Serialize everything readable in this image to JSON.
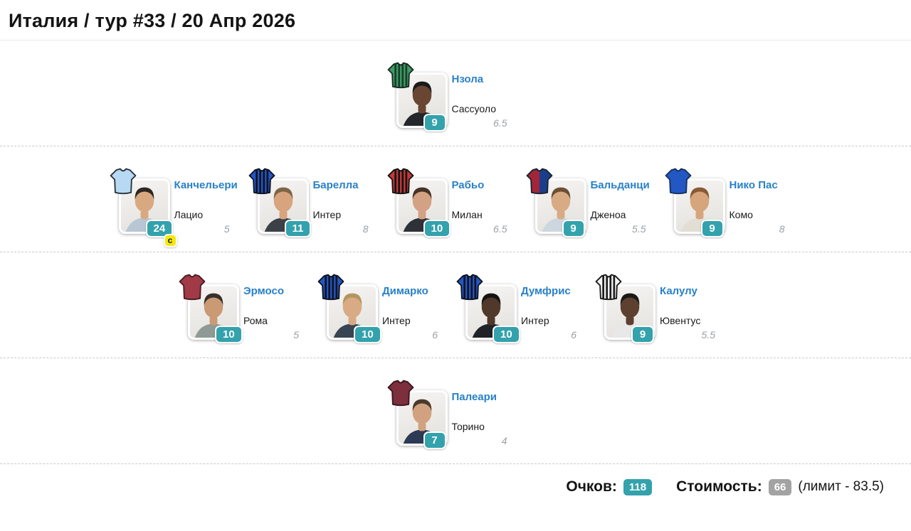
{
  "header": {
    "title": "Италия / тур #33 / 20 Апр 2026"
  },
  "colors": {
    "link_blue": "#2980c9",
    "points_teal": "#33a2ad",
    "captain_yellow": "#f4e80f",
    "cost_gray": "#a3a3a3"
  },
  "rows": [
    {
      "line": "forward-line",
      "players": [
        {
          "name": "Нзола",
          "team": "Сассуоло",
          "points": "9",
          "price": "6.5",
          "captain": false,
          "jersey": {
            "icon": "tshirt-icon",
            "pattern": "stripes",
            "primary": "#3f9b63",
            "secondary": "#173f2c",
            "outline": "#1d2b24"
          },
          "photo": {
            "skin": "#6a4632",
            "hair": "#1b1b1b",
            "shirt": "#23262b"
          }
        }
      ]
    },
    {
      "line": "midfield-line",
      "players": [
        {
          "name": "Канчельери",
          "team": "Лацио",
          "points": "24",
          "price": "5",
          "captain": true,
          "captain_badge": "c",
          "jersey": {
            "icon": "tshirt-icon",
            "pattern": "solid",
            "primary": "#b7d9f4",
            "secondary": "#b7d9f4",
            "outline": "#2c3640"
          },
          "photo": {
            "skin": "#d8a981",
            "hair": "#2e2723",
            "shirt": "#b9c6d4"
          }
        },
        {
          "name": "Барелла",
          "team": "Интер",
          "points": "11",
          "price": "8",
          "captain": false,
          "jersey": {
            "icon": "tshirt-icon",
            "pattern": "stripes",
            "primary": "#2356c5",
            "secondary": "#10131f",
            "outline": "#10131f"
          },
          "photo": {
            "skin": "#d8a47d",
            "hair": "#7d6547",
            "shirt": "#3c4148"
          }
        },
        {
          "name": "Рабьо",
          "team": "Милан",
          "points": "10",
          "price": "6.5",
          "captain": false,
          "jersey": {
            "icon": "tshirt-icon",
            "pattern": "stripes",
            "primary": "#c63838",
            "secondary": "#141414",
            "outline": "#141414"
          },
          "photo": {
            "skin": "#d3a183",
            "hair": "#463226",
            "shirt": "#2e3238"
          }
        },
        {
          "name": "Бальданци",
          "team": "Дженоа",
          "points": "9",
          "price": "5.5",
          "captain": false,
          "jersey": {
            "icon": "tshirt-icon",
            "pattern": "halves",
            "primary": "#a32638",
            "secondary": "#1a3e8c",
            "outline": "#1b2430"
          },
          "photo": {
            "skin": "#d9ab85",
            "hair": "#6d4e33",
            "shirt": "#cdd6df"
          }
        },
        {
          "name": "Нико Пас",
          "team": "Комо",
          "points": "9",
          "price": "8",
          "captain": false,
          "jersey": {
            "icon": "tshirt-icon",
            "pattern": "solid",
            "primary": "#2257c4",
            "secondary": "#2257c4",
            "outline": "#16325e"
          },
          "photo": {
            "skin": "#d7a57c",
            "hair": "#8a5a36",
            "shirt": "#e3ded4"
          }
        }
      ]
    },
    {
      "line": "defense-line",
      "players": [
        {
          "name": "Эрмосо",
          "team": "Рома",
          "points": "10",
          "price": "5",
          "captain": false,
          "jersey": {
            "icon": "tshirt-icon",
            "pattern": "solid",
            "primary": "#a13a46",
            "secondary": "#a13a46",
            "outline": "#4a1d23"
          },
          "photo": {
            "skin": "#c99a74",
            "hair": "#38302a",
            "shirt": "#8e9a93"
          }
        },
        {
          "name": "Димарко",
          "team": "Интер",
          "points": "10",
          "price": "6",
          "captain": false,
          "jersey": {
            "icon": "tshirt-icon",
            "pattern": "stripes",
            "primary": "#2356c5",
            "secondary": "#10131f",
            "outline": "#10131f"
          },
          "photo": {
            "skin": "#d9ab84",
            "hair": "#b3955f",
            "shirt": "#394453"
          }
        },
        {
          "name": "Думфрис",
          "team": "Интер",
          "points": "10",
          "price": "6",
          "captain": false,
          "jersey": {
            "icon": "tshirt-icon",
            "pattern": "stripes",
            "primary": "#2356c5",
            "secondary": "#10131f",
            "outline": "#10131f"
          },
          "photo": {
            "skin": "#50382b",
            "hair": "#141414",
            "shirt": "#1f2327"
          }
        },
        {
          "name": "Калулу",
          "team": "Ювентус",
          "points": "9",
          "price": "5.5",
          "captain": false,
          "jersey": {
            "icon": "tshirt-icon",
            "pattern": "stripes",
            "primary": "#f5f5f5",
            "secondary": "#1c1c1c",
            "outline": "#1c1c1c"
          },
          "photo": {
            "skin": "#5d4030",
            "hair": "#191919",
            "shirt": "#e8e8e8"
          }
        }
      ]
    },
    {
      "line": "goalkeeper-line",
      "players": [
        {
          "name": "Палеари",
          "team": "Торино",
          "points": "7",
          "price": "4",
          "captain": false,
          "jersey": {
            "icon": "tshirt-icon",
            "pattern": "solid",
            "primary": "#7d2f3e",
            "secondary": "#7d2f3e",
            "outline": "#3c161e"
          },
          "photo": {
            "skin": "#d2a280",
            "hair": "#4a3a2c",
            "shirt": "#2c3a55"
          }
        }
      ]
    }
  ],
  "footer": {
    "points_label": "Очков:",
    "points_value": "118",
    "cost_label": "Стоимость:",
    "cost_value": "66",
    "limit_note": "(лимит - 83.5)"
  }
}
